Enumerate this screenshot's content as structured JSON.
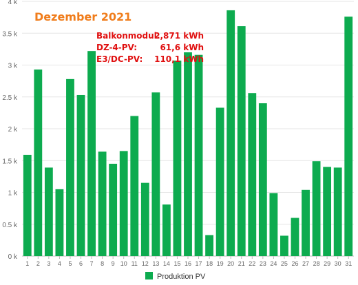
{
  "chart_data": {
    "type": "bar",
    "title": "Dezember 2021",
    "title_color": "#f07d1c",
    "categories": [
      "1",
      "2",
      "3",
      "4",
      "5",
      "6",
      "7",
      "8",
      "9",
      "10",
      "11",
      "12",
      "13",
      "14",
      "15",
      "16",
      "17",
      "18",
      "19",
      "20",
      "21",
      "22",
      "23",
      "24",
      "25",
      "26",
      "27",
      "28",
      "29",
      "30",
      "31"
    ],
    "series": [
      {
        "name": "Produktion PV",
        "color": "#0dab4f",
        "values": [
          1590,
          2930,
          1390,
          1050,
          2780,
          2530,
          3220,
          1640,
          1450,
          1650,
          2200,
          1150,
          2570,
          810,
          3070,
          3200,
          3160,
          330,
          2330,
          3860,
          3610,
          2560,
          2400,
          990,
          320,
          600,
          1040,
          1490,
          1400,
          1390,
          3760
        ]
      }
    ],
    "y_ticks": [
      "0 k",
      "0.5 k",
      "1 k",
      "1.5 k",
      "2 k",
      "2.5 k",
      "3 k",
      "3.5 k",
      "4 k"
    ],
    "ylim": [
      0,
      4000
    ],
    "grid": true,
    "legend_position": "bottom-center",
    "annotations": [
      {
        "label": "Balkonmodul:",
        "value": "2,871 kWh"
      },
      {
        "label": "DZ-4-PV:",
        "value": "61,6 kWh"
      },
      {
        "label": "E3/DC-PV:",
        "value": "110,1 kWh"
      }
    ],
    "annotation_color": "#e01010"
  }
}
